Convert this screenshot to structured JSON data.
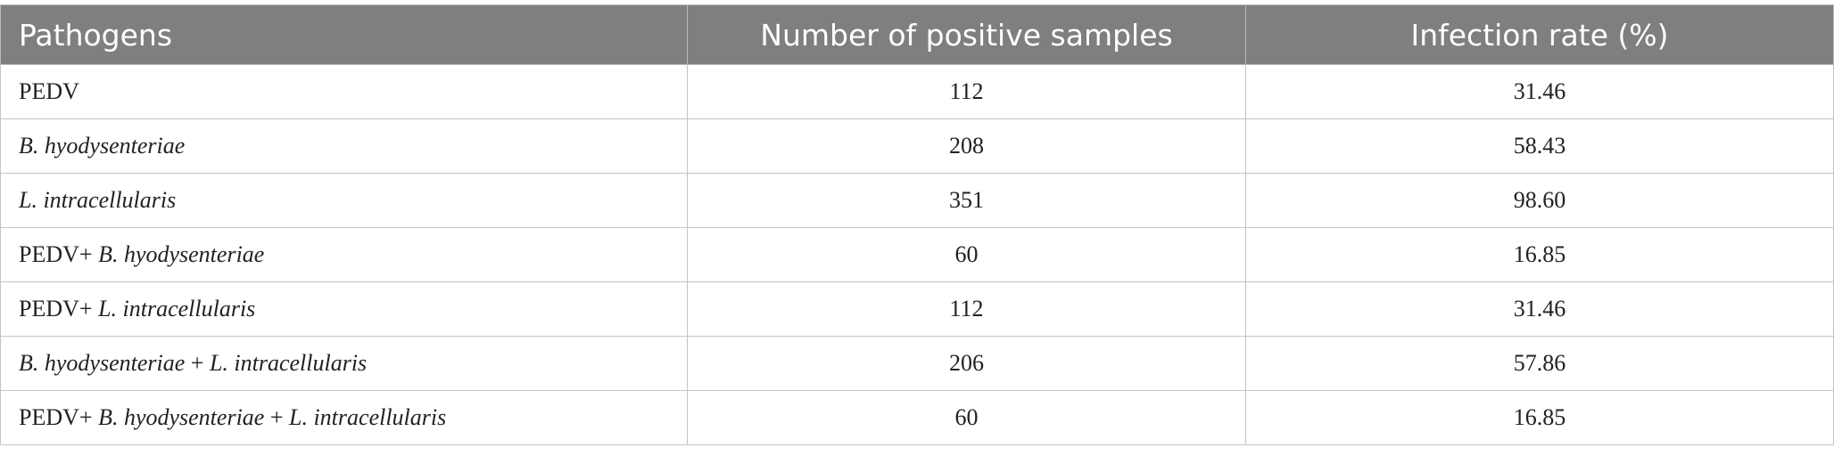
{
  "table": {
    "headers": [
      "Pathogens",
      "Number of positive samples",
      "Infection rate (%)"
    ],
    "rows": [
      {
        "pathogen": [
          {
            "text": "PEDV",
            "italic": false
          }
        ],
        "count": "112",
        "rate": "31.46"
      },
      {
        "pathogen": [
          {
            "text": "B. hyodysenteriae",
            "italic": true
          }
        ],
        "count": "208",
        "rate": "58.43"
      },
      {
        "pathogen": [
          {
            "text": "L. intracellularis",
            "italic": true
          }
        ],
        "count": "351",
        "rate": "98.60"
      },
      {
        "pathogen": [
          {
            "text": "PEDV+ ",
            "italic": false
          },
          {
            "text": "B. hyodysenteriae",
            "italic": true
          }
        ],
        "count": "60",
        "rate": "16.85"
      },
      {
        "pathogen": [
          {
            "text": "PEDV+ ",
            "italic": false
          },
          {
            "text": "L. intracellularis",
            "italic": true
          }
        ],
        "count": "112",
        "rate": "31.46"
      },
      {
        "pathogen": [
          {
            "text": "B. hyodysenteriae",
            "italic": true
          },
          {
            "text": " + ",
            "italic": false
          },
          {
            "text": "L. intracellularis",
            "italic": true
          }
        ],
        "count": "206",
        "rate": "57.86"
      },
      {
        "pathogen": [
          {
            "text": "PEDV+ ",
            "italic": false
          },
          {
            "text": "B. hyodysenteriae",
            "italic": true
          },
          {
            "text": " + ",
            "italic": false
          },
          {
            "text": "L. intracellularis",
            "italic": true
          }
        ],
        "count": "60",
        "rate": "16.85"
      }
    ]
  }
}
